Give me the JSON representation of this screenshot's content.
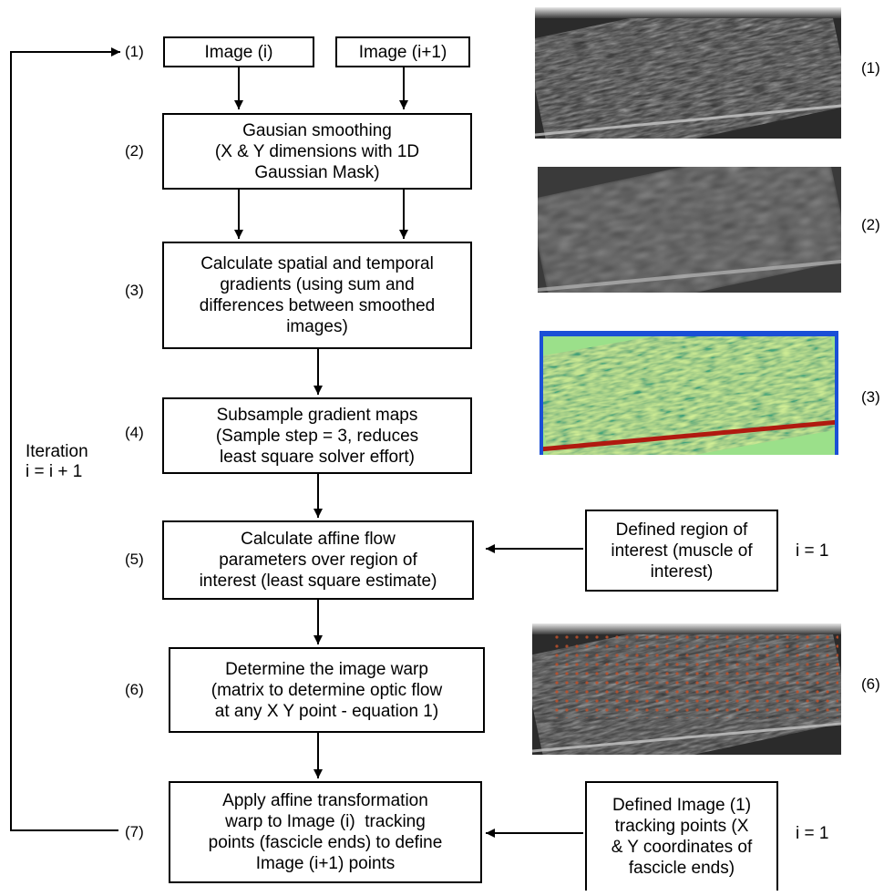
{
  "steps": [
    "(1)",
    "(2)",
    "(3)",
    "(4)",
    "(5)",
    "(6)",
    "(7)"
  ],
  "boxes": {
    "image_i": "Image (i)",
    "image_i1": "Image (i+1)",
    "smoothing": [
      "Gausian smoothing",
      "(X & Y dimensions with 1D",
      "Gaussian Mask)"
    ],
    "gradients": [
      "Calculate spatial and temporal",
      "gradients (using sum and",
      "differences between smoothed",
      "images)"
    ],
    "subsample": [
      "Subsample gradient maps",
      "(Sample step = 3, reduces",
      "least square solver effort)"
    ],
    "affine_flow": [
      "Calculate affine flow",
      "parameters over region of",
      "interest (least square estimate)"
    ],
    "warp": [
      "Determine the image warp",
      "(matrix to determine optic flow",
      "at any X Y point - equation 1)"
    ],
    "apply": [
      "Apply affine transformation",
      "warp to Image (i)  tracking",
      "points (fascicle ends) to define",
      "Image (i+1) points"
    ],
    "roi": [
      "Defined region of",
      "interest (muscle of",
      "interest)"
    ],
    "tracking_points": [
      "Defined Image (1)",
      "tracking points (X",
      "& Y coordinates of",
      "fascicle ends)"
    ]
  },
  "iteration": [
    "Iteration",
    "i = i + 1"
  ],
  "i_equals_1": "i = 1",
  "image_labels": [
    "(1)",
    "(2)",
    "(3)",
    "(6)"
  ],
  "colors": {
    "line": "#000000",
    "colormap_low": "#1a4fd6",
    "colormap_mid": "#c8e830",
    "colormap_high": "#b01a10",
    "overlay_points": "#c0502a"
  }
}
